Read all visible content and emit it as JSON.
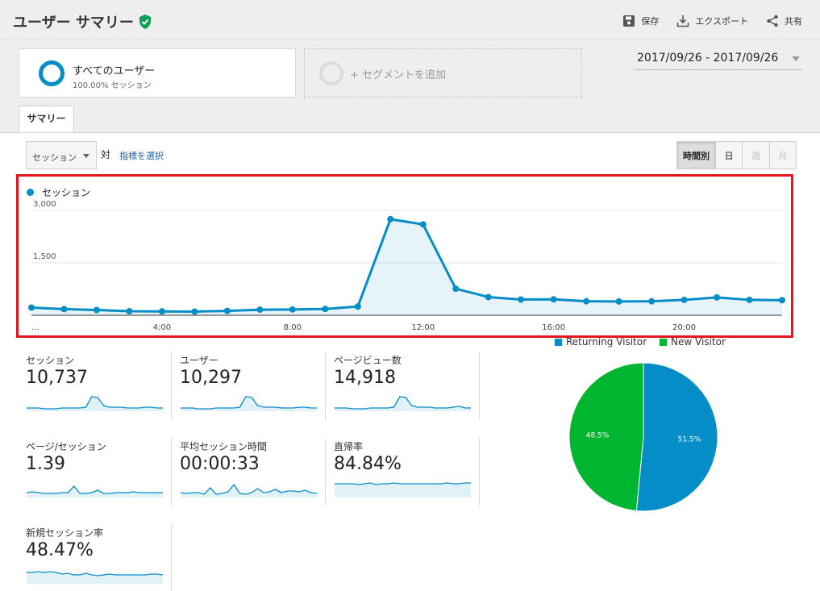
{
  "header": {
    "title": "ユーザー サマリー",
    "save_label": "保存",
    "export_label": "エクスポート",
    "share_label": "共有"
  },
  "segments": {
    "active_name": "すべてのユーザー",
    "active_sub": "100.00% セッション",
    "add_label": "+ セグメントを追加"
  },
  "date_range": "2017/09/26 - 2017/09/26",
  "tabs": [
    "サマリー"
  ],
  "controls": {
    "metric_select": "セッション",
    "vs_label": "対",
    "pick_metric": "指標を選択",
    "periods": [
      {
        "label": "時間別",
        "state": "active"
      },
      {
        "label": "日",
        "state": "normal"
      },
      {
        "label": "週",
        "state": "disabled"
      },
      {
        "label": "月",
        "state": "disabled"
      }
    ]
  },
  "chart_data": {
    "type": "line",
    "series": [
      {
        "name": "セッション",
        "color": "#058dc7",
        "values": [
          220,
          175,
          150,
          115,
          110,
          105,
          125,
          160,
          165,
          180,
          250,
          2750,
          2600,
          760,
          520,
          450,
          455,
          400,
          395,
          400,
          440,
          510,
          440,
          430
        ]
      }
    ],
    "x": [
      0,
      1,
      2,
      3,
      4,
      5,
      6,
      7,
      8,
      9,
      10,
      11,
      12,
      13,
      14,
      15,
      16,
      17,
      18,
      19,
      20,
      21,
      22,
      23
    ],
    "x_tick_labels": [
      "...",
      "4:00",
      "8:00",
      "12:00",
      "16:00",
      "20:00"
    ],
    "y_tick_labels": [
      "3,000",
      "1,500"
    ],
    "ylim": [
      0,
      3000
    ],
    "grid": true
  },
  "scorecards": [
    {
      "label": "セッション",
      "value": "10,737",
      "spark": [
        4,
        4,
        4,
        3,
        3,
        3,
        4,
        4,
        4,
        4,
        5,
        18,
        17,
        7,
        5,
        5,
        5,
        4,
        4,
        4,
        5,
        5,
        4,
        4
      ]
    },
    {
      "label": "ユーザー",
      "value": "10,297",
      "spark": [
        4,
        4,
        4,
        3,
        3,
        3,
        4,
        4,
        4,
        4,
        5,
        18,
        17,
        7,
        5,
        5,
        5,
        4,
        4,
        4,
        5,
        5,
        4,
        4
      ]
    },
    {
      "label": "ページビュー数",
      "value": "14,918",
      "spark": [
        4,
        4,
        4,
        3,
        3,
        3,
        4,
        4,
        4,
        4,
        5,
        18,
        17,
        7,
        5,
        5,
        5,
        4,
        4,
        4,
        5,
        6,
        4,
        4
      ]
    },
    {
      "label": "ページ/セッション",
      "value": "1.39",
      "spark": [
        6,
        7,
        6,
        5,
        5,
        5,
        6,
        6,
        14,
        5,
        5,
        6,
        9,
        5,
        5,
        6,
        6,
        6,
        7,
        6,
        6,
        6,
        6,
        6
      ]
    },
    {
      "label": "平均セッション時間",
      "value": "00:00:33",
      "spark": [
        6,
        5,
        6,
        6,
        4,
        12,
        4,
        5,
        7,
        16,
        5,
        4,
        6,
        11,
        6,
        7,
        10,
        6,
        8,
        8,
        7,
        9,
        6,
        5
      ]
    },
    {
      "label": "直帰率",
      "value": "84.84%",
      "spark": [
        17,
        17,
        17,
        17,
        16,
        17,
        18,
        16,
        17,
        17,
        18,
        17,
        17,
        17,
        17,
        17,
        17,
        17,
        17,
        18,
        17,
        17,
        18,
        18
      ]
    },
    {
      "label": "新規セッション率",
      "value": "48.47%",
      "spark": [
        14,
        14,
        15,
        14,
        15,
        14,
        12,
        13,
        11,
        11,
        13,
        11,
        10,
        11,
        12,
        11,
        11,
        11,
        11,
        11,
        11,
        12,
        12,
        11
      ]
    }
  ],
  "pie": {
    "legend": [
      {
        "label": "Returning Visitor",
        "color": "#058dc7",
        "value": 51.5,
        "display": "51.5%"
      },
      {
        "label": "New Visitor",
        "color": "#00b530",
        "value": 48.5,
        "display": "48.5%"
      }
    ]
  }
}
